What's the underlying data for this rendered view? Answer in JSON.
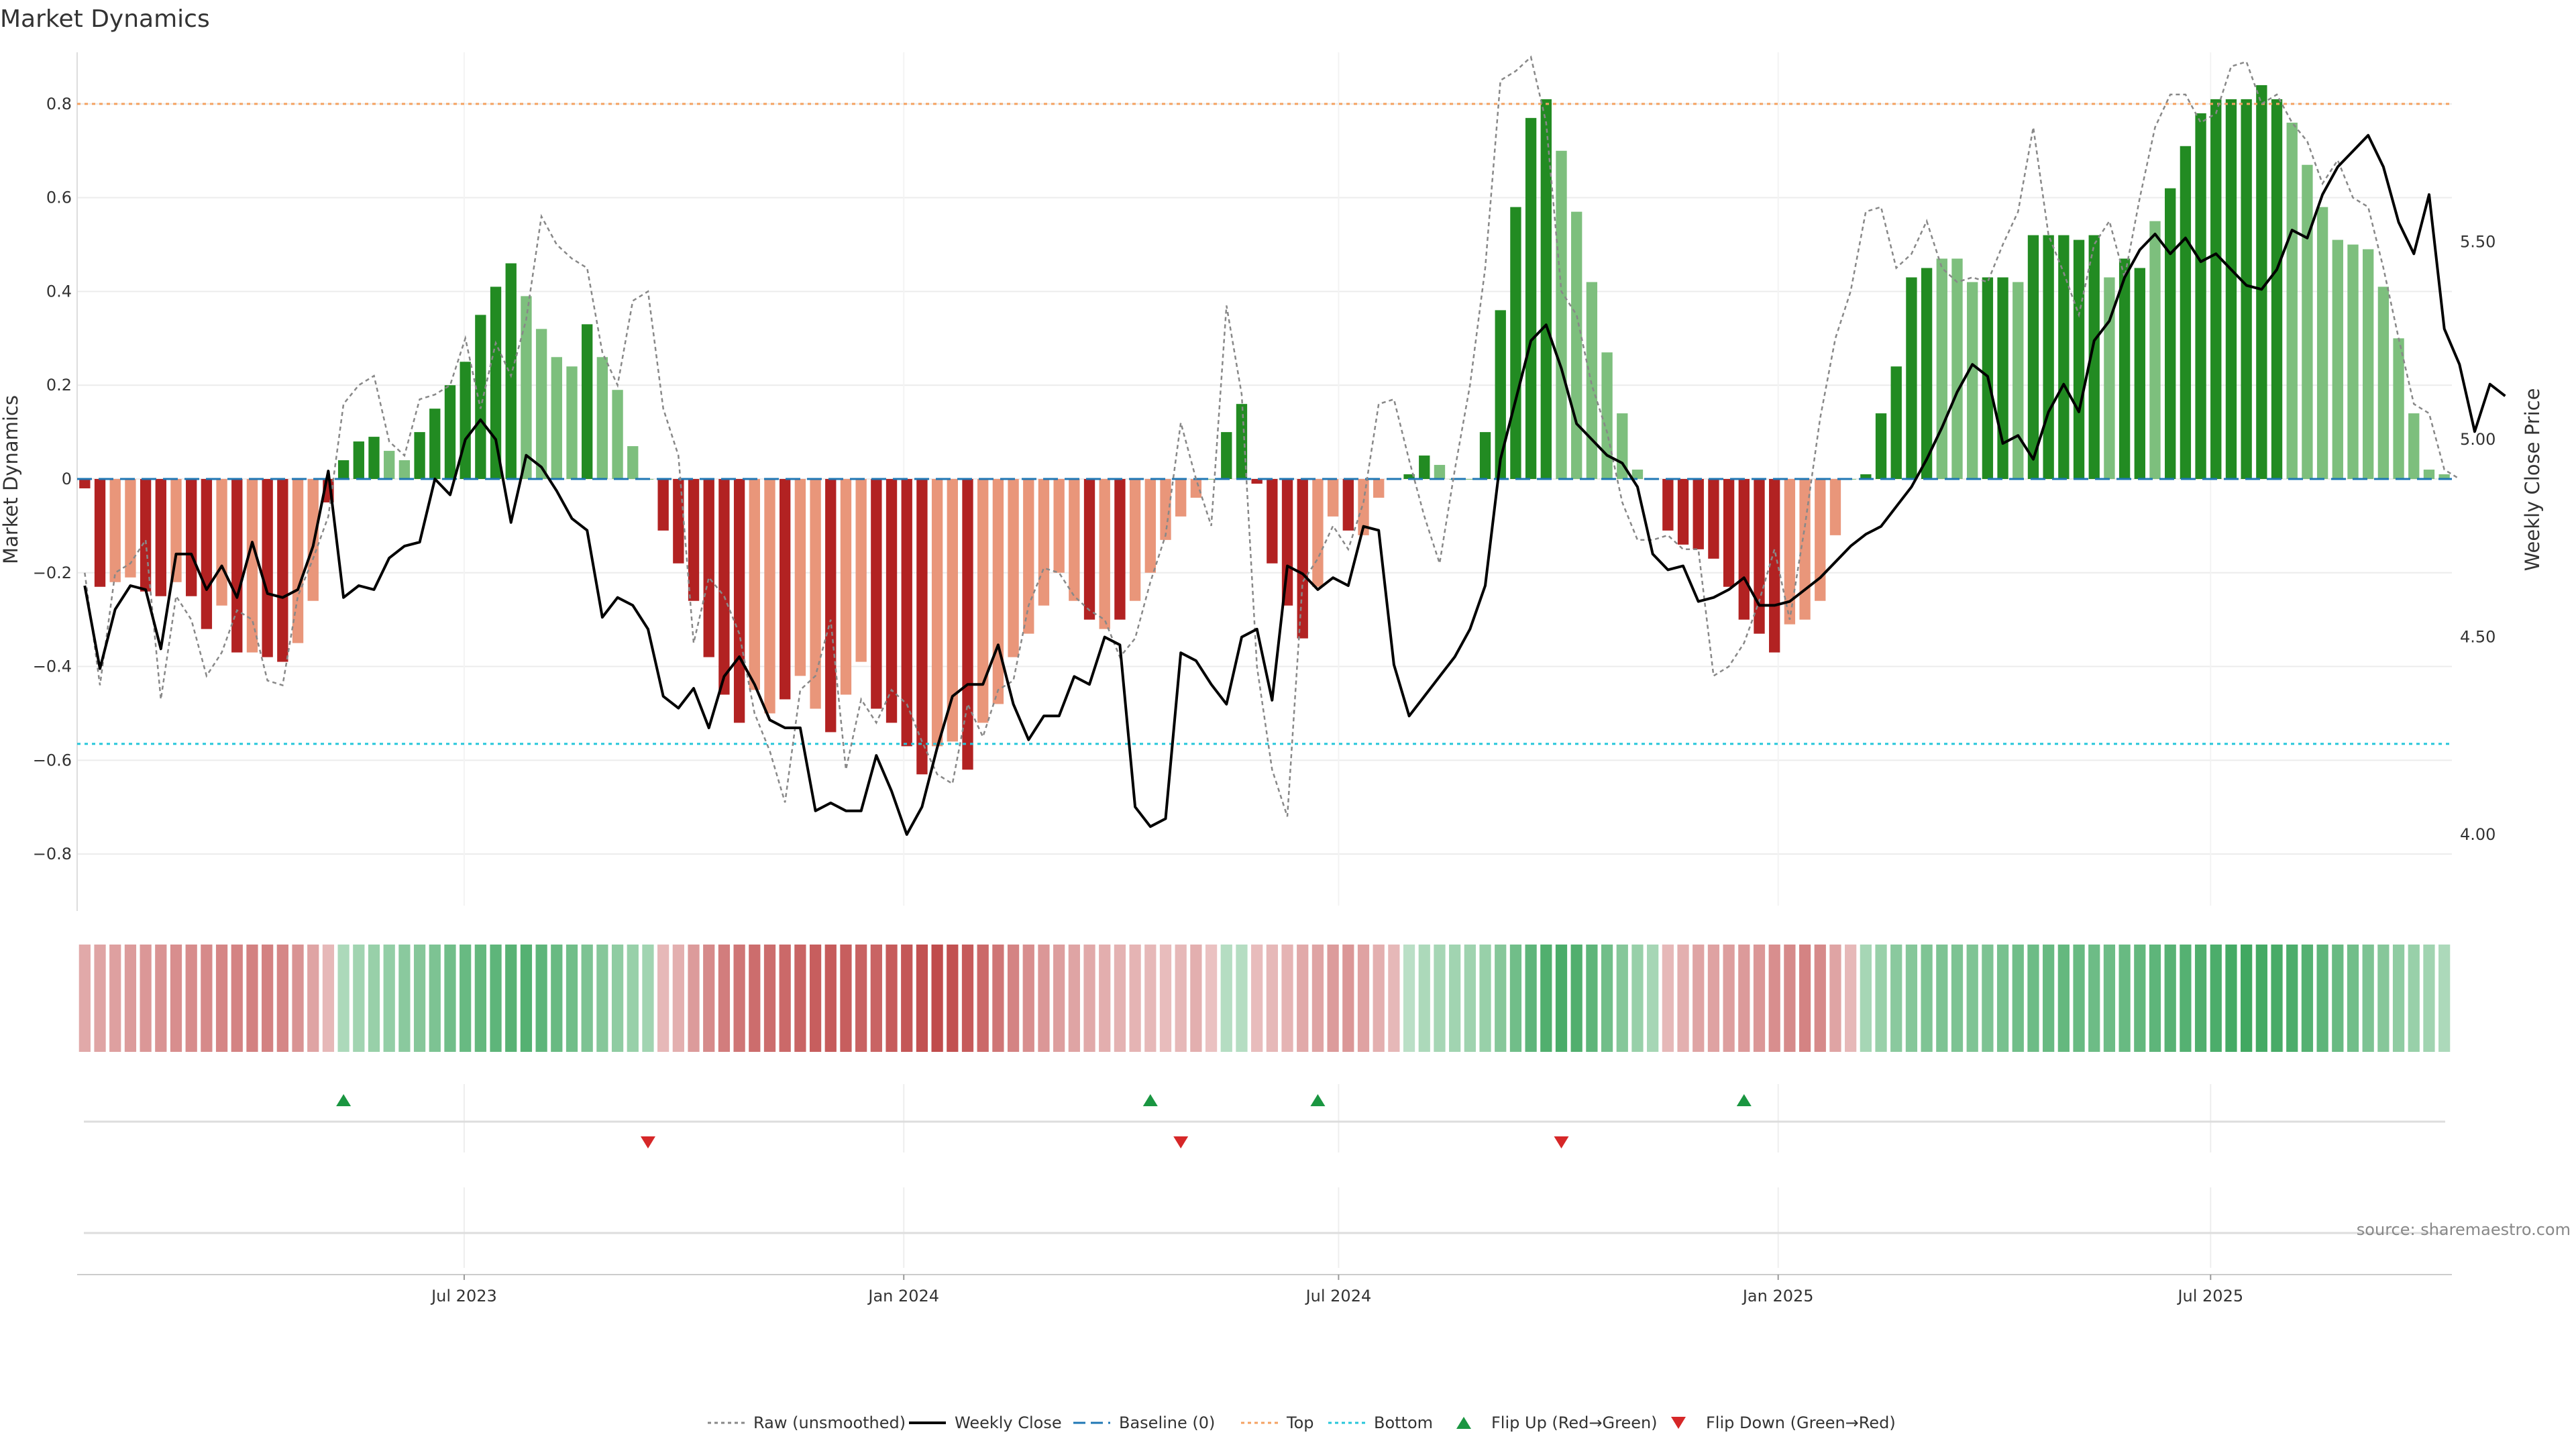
{
  "chart_data": {
    "type": "bar",
    "title": "Market Dynamics",
    "ylabel": "Market Dynamics",
    "y2label": "Weekly Close Price",
    "ylim": [
      -0.91,
      0.91
    ],
    "y2lim": [
      3.82,
      5.98
    ],
    "yticks": [
      -0.8,
      -0.6,
      -0.4,
      -0.2,
      0,
      0.2,
      0.4,
      0.6,
      0.8
    ],
    "ytick_labels": [
      "−0.8",
      "−0.6",
      "−0.4",
      "−0.2",
      "0",
      "0.2",
      "0.4",
      "0.6",
      "0.8"
    ],
    "y2ticks": [
      4.0,
      4.5,
      5.0,
      5.5
    ],
    "y2tick_labels": [
      "4.00",
      "4.50",
      "5.00",
      "5.50"
    ],
    "x_start_date": "2023-01-20",
    "x_end_date": "2025-10-10",
    "xticks": [
      {
        "date": "2023-07-01",
        "label": "Jul 2023"
      },
      {
        "date": "2024-01-01",
        "label": "Jan 2024"
      },
      {
        "date": "2024-07-01",
        "label": "Jul 2024"
      },
      {
        "date": "2025-01-01",
        "label": "Jan 2025"
      },
      {
        "date": "2025-07-01",
        "label": "Jul 2025"
      }
    ],
    "top_threshold": 0.8,
    "bottom_threshold": -0.565,
    "baseline": 0,
    "grid": true,
    "legend_position": "bottom-center",
    "colors": {
      "strong_up": "#228B22",
      "weak_up": "#7DBF7D",
      "strong_down": "#B22222",
      "weak_down": "#E9967A",
      "close_line": "#000000",
      "raw_line": "#888888",
      "baseline": "#1f77b4",
      "top": "#f4a261",
      "bottom": "#26c6da",
      "flip_up": "#1a9641",
      "flip_down": "#d62728"
    },
    "series": [
      {
        "name": "Market Dynamics",
        "values": [
          -0.02,
          -0.23,
          -0.22,
          -0.21,
          -0.24,
          -0.25,
          -0.22,
          -0.25,
          -0.32,
          -0.27,
          -0.37,
          -0.37,
          -0.38,
          -0.39,
          -0.35,
          -0.26,
          -0.05,
          0.04,
          0.08,
          0.09,
          0.06,
          0.04,
          0.1,
          0.15,
          0.2,
          0.25,
          0.35,
          0.41,
          0.46,
          0.39,
          0.32,
          0.26,
          0.24,
          0.33,
          0.26,
          0.19,
          0.07,
          0.0,
          -0.11,
          -0.18,
          -0.26,
          -0.38,
          -0.46,
          -0.52,
          -0.45,
          -0.5,
          -0.47,
          -0.42,
          -0.49,
          -0.54,
          -0.46,
          -0.39,
          -0.49,
          -0.52,
          -0.57,
          -0.63,
          -0.57,
          -0.56,
          -0.62,
          -0.52,
          -0.48,
          -0.38,
          -0.33,
          -0.27,
          -0.2,
          -0.26,
          -0.3,
          -0.32,
          -0.3,
          -0.26,
          -0.2,
          -0.13,
          -0.08,
          -0.04,
          0.0,
          0.1,
          0.16,
          -0.01,
          -0.18,
          -0.27,
          -0.34,
          -0.23,
          -0.08,
          -0.11,
          -0.12,
          -0.04,
          0.0,
          0.01,
          0.05,
          0.03,
          0.0,
          0.0,
          0.1,
          0.36,
          0.58,
          0.77,
          0.81,
          0.7,
          0.57,
          0.42,
          0.27,
          0.14,
          0.02,
          0.0,
          -0.11,
          -0.14,
          -0.15,
          -0.17,
          -0.23,
          -0.3,
          -0.33,
          -0.37,
          -0.31,
          -0.3,
          -0.26,
          -0.12,
          0.0,
          0.01,
          0.14,
          0.24,
          0.43,
          0.45,
          0.47,
          0.47,
          0.42,
          0.43,
          0.43,
          0.42,
          0.52,
          0.52,
          0.52,
          0.51,
          0.52,
          0.43,
          0.47,
          0.45,
          0.55,
          0.62,
          0.71,
          0.78,
          0.81,
          0.81,
          0.81,
          0.84,
          0.81,
          0.76,
          0.67,
          0.58,
          0.51,
          0.5,
          0.49,
          0.41,
          0.3,
          0.14,
          0.02,
          0.01
        ],
        "strength": [
          "s",
          "s",
          "w",
          "w",
          "s",
          "s",
          "w",
          "s",
          "s",
          "w",
          "s",
          "w",
          "s",
          "s",
          "w",
          "w",
          "s",
          "s",
          "s",
          "s",
          "w",
          "w",
          "s",
          "s",
          "s",
          "s",
          "s",
          "s",
          "s",
          "w",
          "w",
          "w",
          "w",
          "s",
          "w",
          "w",
          "w",
          "w",
          "s",
          "s",
          "s",
          "s",
          "s",
          "s",
          "w",
          "w",
          "s",
          "w",
          "w",
          "s",
          "w",
          "w",
          "s",
          "s",
          "s",
          "s",
          "w",
          "w",
          "s",
          "w",
          "w",
          "w",
          "w",
          "w",
          "w",
          "w",
          "s",
          "w",
          "s",
          "w",
          "w",
          "w",
          "w",
          "w",
          "w",
          "s",
          "s",
          "s",
          "s",
          "s",
          "s",
          "w",
          "w",
          "s",
          "w",
          "w",
          "w",
          "s",
          "s",
          "w",
          "w",
          "w",
          "s",
          "s",
          "s",
          "s",
          "s",
          "w",
          "w",
          "w",
          "w",
          "w",
          "w",
          "w",
          "s",
          "s",
          "s",
          "s",
          "s",
          "s",
          "s",
          "s",
          "w",
          "w",
          "w",
          "w",
          "w",
          "s",
          "s",
          "s",
          "s",
          "s",
          "w",
          "w",
          "w",
          "s",
          "s",
          "w",
          "s",
          "s",
          "s",
          "s",
          "s",
          "w",
          "s",
          "s",
          "w",
          "s",
          "s",
          "s",
          "s",
          "s",
          "s",
          "s",
          "s",
          "w",
          "w",
          "w",
          "w",
          "w",
          "w",
          "w",
          "w",
          "w",
          "w"
        ]
      },
      {
        "name": "Raw (unsmoothed)",
        "values": [
          -0.2,
          -0.44,
          -0.2,
          -0.18,
          -0.13,
          -0.47,
          -0.25,
          -0.3,
          -0.42,
          -0.37,
          -0.28,
          -0.3,
          -0.43,
          -0.44,
          -0.25,
          -0.17,
          -0.08,
          0.16,
          0.2,
          0.22,
          0.08,
          0.05,
          0.17,
          0.18,
          0.2,
          0.3,
          0.15,
          0.29,
          0.22,
          0.34,
          0.56,
          0.5,
          0.47,
          0.45,
          0.27,
          0.2,
          0.38,
          0.4,
          0.15,
          0.05,
          -0.35,
          -0.21,
          -0.25,
          -0.33,
          -0.5,
          -0.58,
          -0.69,
          -0.45,
          -0.42,
          -0.3,
          -0.62,
          -0.47,
          -0.52,
          -0.45,
          -0.48,
          -0.56,
          -0.63,
          -0.65,
          -0.48,
          -0.55,
          -0.45,
          -0.43,
          -0.27,
          -0.19,
          -0.2,
          -0.25,
          -0.28,
          -0.3,
          -0.38,
          -0.34,
          -0.22,
          -0.12,
          0.12,
          0.0,
          -0.1,
          0.37,
          0.18,
          -0.4,
          -0.62,
          -0.72,
          -0.22,
          -0.17,
          -0.1,
          -0.15,
          -0.05,
          0.16,
          0.17,
          0.04,
          -0.08,
          -0.18,
          0.02,
          0.2,
          0.45,
          0.85,
          0.87,
          0.9,
          0.76,
          0.4,
          0.35,
          0.2,
          0.1,
          -0.05,
          -0.13,
          -0.13,
          -0.12,
          -0.15,
          -0.15,
          -0.42,
          -0.4,
          -0.35,
          -0.26,
          -0.15,
          -0.3,
          -0.1,
          0.13,
          0.3,
          0.4,
          0.57,
          0.58,
          0.45,
          0.48,
          0.55,
          0.45,
          0.42,
          0.43,
          0.42,
          0.5,
          0.57,
          0.75,
          0.52,
          0.44,
          0.35,
          0.5,
          0.55,
          0.43,
          0.6,
          0.75,
          0.82,
          0.82,
          0.76,
          0.78,
          0.88,
          0.89,
          0.8,
          0.82,
          0.76,
          0.72,
          0.63,
          0.68,
          0.6,
          0.58,
          0.45,
          0.3,
          0.16,
          0.14,
          0.02,
          0.0
        ]
      },
      {
        "name": "Weekly Close",
        "values": [
          4.63,
          4.42,
          4.57,
          4.63,
          4.62,
          4.47,
          4.71,
          4.71,
          4.62,
          4.68,
          4.6,
          4.74,
          4.61,
          4.6,
          4.62,
          4.73,
          4.92,
          4.6,
          4.63,
          4.62,
          4.7,
          4.73,
          4.74,
          4.9,
          4.86,
          5.0,
          5.05,
          5.0,
          4.79,
          4.96,
          4.93,
          4.87,
          4.8,
          4.77,
          4.55,
          4.6,
          4.58,
          4.52,
          4.35,
          4.32,
          4.37,
          4.27,
          4.4,
          4.45,
          4.38,
          4.29,
          4.27,
          4.27,
          4.06,
          4.08,
          4.06,
          4.06,
          4.2,
          4.11,
          4.0,
          4.07,
          4.22,
          4.35,
          4.38,
          4.38,
          4.48,
          4.33,
          4.24,
          4.3,
          4.3,
          4.4,
          4.38,
          4.5,
          4.48,
          4.07,
          4.02,
          4.04,
          4.46,
          4.44,
          4.38,
          4.33,
          4.5,
          4.52,
          4.34,
          4.68,
          4.66,
          4.62,
          4.65,
          4.63,
          4.78,
          4.77,
          4.43,
          4.3,
          4.35,
          4.4,
          4.45,
          4.52,
          4.63,
          4.95,
          5.1,
          5.25,
          5.29,
          5.18,
          5.04,
          5.0,
          4.96,
          4.94,
          4.88,
          4.71,
          4.67,
          4.68,
          4.59,
          4.6,
          4.62,
          4.65,
          4.58,
          4.58,
          4.59,
          4.62,
          4.65,
          4.69,
          4.73,
          4.76,
          4.78,
          4.83,
          4.88,
          4.95,
          5.03,
          5.12,
          5.19,
          5.16,
          4.99,
          5.01,
          4.95,
          5.07,
          5.14,
          5.07,
          5.25,
          5.3,
          5.41,
          5.48,
          5.52,
          5.47,
          5.51,
          5.45,
          5.47,
          5.43,
          5.39,
          5.38,
          5.43,
          5.53,
          5.51,
          5.62,
          5.69,
          5.73,
          5.77,
          5.69,
          5.55,
          5.47,
          5.62,
          5.28,
          5.19,
          5.02,
          5.14,
          5.11
        ]
      }
    ],
    "color_strip_intensity": [
      0.28,
      0.3,
      0.33,
      0.35,
      0.38,
      0.4,
      0.42,
      0.43,
      0.45,
      0.47,
      0.48,
      0.5,
      0.49,
      0.47,
      0.4,
      0.3,
      0.2,
      0.25,
      0.3,
      0.35,
      0.38,
      0.42,
      0.45,
      0.5,
      0.55,
      0.6,
      0.62,
      0.65,
      0.68,
      0.7,
      0.65,
      0.6,
      0.55,
      0.5,
      0.45,
      0.4,
      0.35,
      0.3,
      0.2,
      0.25,
      0.35,
      0.45,
      0.52,
      0.55,
      0.6,
      0.6,
      0.62,
      0.65,
      0.68,
      0.7,
      0.68,
      0.66,
      0.65,
      0.7,
      0.72,
      0.75,
      0.78,
      0.75,
      0.7,
      0.62,
      0.55,
      0.48,
      0.42,
      0.38,
      0.34,
      0.3,
      0.28,
      0.26,
      0.24,
      0.22,
      0.2,
      0.18,
      0.2,
      0.25,
      0.15,
      0.2,
      0.2,
      0.18,
      0.2,
      0.22,
      0.28,
      0.3,
      0.35,
      0.38,
      0.32,
      0.25,
      0.2,
      0.18,
      0.25,
      0.28,
      0.3,
      0.32,
      0.35,
      0.45,
      0.55,
      0.65,
      0.72,
      0.75,
      0.72,
      0.65,
      0.55,
      0.45,
      0.35,
      0.28,
      0.2,
      0.25,
      0.3,
      0.32,
      0.34,
      0.36,
      0.38,
      0.42,
      0.45,
      0.48,
      0.45,
      0.3,
      0.2,
      0.28,
      0.35,
      0.42,
      0.45,
      0.48,
      0.5,
      0.5,
      0.48,
      0.5,
      0.52,
      0.55,
      0.58,
      0.6,
      0.62,
      0.6,
      0.58,
      0.58,
      0.6,
      0.62,
      0.65,
      0.68,
      0.7,
      0.72,
      0.74,
      0.78,
      0.8,
      0.78,
      0.76,
      0.74,
      0.7,
      0.65,
      0.6,
      0.55,
      0.5,
      0.45,
      0.4,
      0.35,
      0.3,
      0.25
    ],
    "flip_up": [
      17,
      70,
      81,
      109
    ],
    "flip_down": [
      37,
      72,
      97
    ],
    "legend": [
      {
        "label": "Raw (unsmoothed)",
        "style": "dotted-line",
        "color": "#888888"
      },
      {
        "label": "Weekly Close",
        "style": "line",
        "color": "#000000"
      },
      {
        "label": "Baseline (0)",
        "style": "dashed-line",
        "color": "#1f77b4"
      },
      {
        "label": "Top",
        "style": "dotted-line",
        "color": "#f4a261"
      },
      {
        "label": "Bottom",
        "style": "dotted-line",
        "color": "#26c6da"
      },
      {
        "label": "Flip Up (Red→Green)",
        "style": "triangle-up",
        "color": "#1a9641"
      },
      {
        "label": "Flip Down (Green→Red)",
        "style": "triangle-down",
        "color": "#d62728"
      }
    ]
  },
  "source_text": "source: sharemaestro.com"
}
